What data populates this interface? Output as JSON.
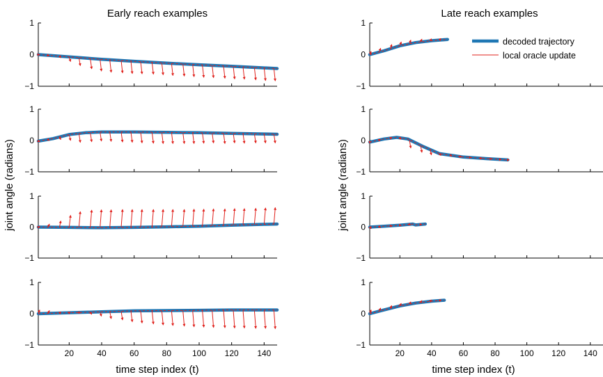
{
  "figure": {
    "legend": {
      "decoded": "decoded trajectory",
      "oracle": "local oracle update"
    },
    "colors": {
      "decoded": "#1f77b4",
      "oracle": "#e0201b",
      "axis": "#000000"
    }
  },
  "chart_data": [
    {
      "type": "line",
      "title": "Early reach examples",
      "ylabel": "joint angle (radians)",
      "xlabel": "time step index (t)",
      "xlim": [
        1,
        148
      ],
      "ylim": [
        -1,
        1
      ],
      "xticks": [
        20,
        40,
        60,
        80,
        100,
        120,
        140
      ],
      "yticks": [
        -1,
        0,
        1
      ],
      "panels": [
        {
          "series": [
            {
              "name": "decoded trajectory",
              "x": [
                1,
                20,
                40,
                60,
                80,
                100,
                120,
                140,
                148
              ],
              "y": [
                0.0,
                -0.07,
                -0.15,
                -0.21,
                -0.27,
                -0.32,
                -0.37,
                -0.42,
                -0.44
              ]
            }
          ],
          "oracle": {
            "x": [
              1,
              7,
              14,
              20,
              26,
              33,
              39,
              45,
              52,
              58,
              64,
              71,
              77,
              83,
              90,
              96,
              102,
              108,
              115,
              121,
              127,
              134,
              140,
              146
            ],
            "y": [
              0.0,
              -0.03,
              -0.1,
              -0.22,
              -0.35,
              -0.45,
              -0.52,
              -0.56,
              -0.58,
              -0.6,
              -0.61,
              -0.62,
              -0.64,
              -0.66,
              -0.68,
              -0.7,
              -0.72,
              -0.73,
              -0.75,
              -0.77,
              -0.78,
              -0.8,
              -0.82,
              -0.83
            ]
          }
        },
        {
          "series": [
            {
              "name": "decoded trajectory",
              "x": [
                1,
                10,
                20,
                30,
                40,
                60,
                80,
                100,
                120,
                140,
                148
              ],
              "y": [
                -0.02,
                0.06,
                0.19,
                0.25,
                0.27,
                0.27,
                0.26,
                0.25,
                0.23,
                0.21,
                0.2
              ]
            }
          ],
          "oracle": {
            "x": [
              1,
              7,
              14,
              20,
              26,
              33,
              39,
              45,
              52,
              58,
              64,
              71,
              77,
              83,
              90,
              96,
              102,
              108,
              115,
              121,
              127,
              134,
              140,
              146
            ],
            "y": [
              -0.04,
              0.0,
              0.03,
              0.0,
              -0.06,
              -0.04,
              -0.02,
              -0.03,
              -0.05,
              -0.06,
              -0.08,
              -0.09,
              -0.1,
              -0.1,
              -0.1,
              -0.1,
              -0.09,
              -0.08,
              -0.1,
              -0.08,
              -0.09,
              -0.08,
              -0.08,
              -0.08
            ]
          }
        },
        {
          "series": [
            {
              "name": "decoded trajectory",
              "x": [
                1,
                20,
                40,
                60,
                80,
                100,
                120,
                140,
                148
              ],
              "y": [
                0.0,
                -0.01,
                -0.02,
                -0.01,
                0.01,
                0.03,
                0.06,
                0.09,
                0.1
              ]
            }
          ],
          "oracle": {
            "x": [
              1,
              7,
              14,
              20,
              26,
              33,
              39,
              45,
              52,
              58,
              64,
              71,
              77,
              83,
              90,
              96,
              102,
              108,
              115,
              121,
              127,
              134,
              140,
              146
            ],
            "y": [
              0.02,
              0.1,
              0.2,
              0.38,
              0.5,
              0.55,
              0.56,
              0.56,
              0.57,
              0.57,
              0.57,
              0.57,
              0.57,
              0.57,
              0.57,
              0.58,
              0.58,
              0.59,
              0.59,
              0.6,
              0.6,
              0.61,
              0.62,
              0.63
            ]
          }
        },
        {
          "series": [
            {
              "name": "decoded trajectory",
              "x": [
                1,
                20,
                40,
                60,
                80,
                100,
                120,
                140,
                148
              ],
              "y": [
                0.0,
                0.03,
                0.06,
                0.09,
                0.1,
                0.11,
                0.12,
                0.12,
                0.12
              ]
            }
          ],
          "oracle": {
            "x": [
              1,
              7,
              14,
              20,
              26,
              33,
              39,
              45,
              52,
              58,
              64,
              71,
              77,
              83,
              90,
              96,
              102,
              108,
              115,
              121,
              127,
              134,
              140,
              146
            ],
            "y": [
              0.12,
              0.1,
              0.06,
              0.05,
              0.02,
              -0.02,
              -0.08,
              -0.16,
              -0.2,
              -0.26,
              -0.3,
              -0.33,
              -0.36,
              -0.38,
              -0.4,
              -0.42,
              -0.43,
              -0.44,
              -0.45,
              -0.46,
              -0.46,
              -0.47,
              -0.47,
              -0.48
            ]
          }
        }
      ]
    },
    {
      "type": "line",
      "title": "Late reach examples",
      "ylabel": "joint angle (radians)",
      "xlabel": "time step index (t)",
      "xlim": [
        1,
        148
      ],
      "ylim": [
        -1,
        1
      ],
      "xticks": [
        20,
        40,
        60,
        80,
        100,
        120,
        140
      ],
      "yticks": [
        -1,
        0,
        1
      ],
      "legend_position": "top-right",
      "panels": [
        {
          "series": [
            {
              "name": "decoded trajectory",
              "x": [
                1,
                10,
                20,
                30,
                40,
                50
              ],
              "y": [
                0.0,
                0.12,
                0.28,
                0.38,
                0.44,
                0.48
              ]
            }
          ],
          "oracle": {
            "x": [
              1,
              7,
              14,
              20,
              26,
              33,
              39,
              45
            ],
            "y": [
              0.1,
              0.2,
              0.32,
              0.4,
              0.46,
              0.49,
              0.5,
              0.51
            ]
          }
        },
        {
          "series": [
            {
              "name": "decoded trajectory",
              "x": [
                1,
                10,
                18,
                25,
                35,
                45,
                60,
                75,
                88
              ],
              "y": [
                -0.05,
                0.05,
                0.1,
                0.05,
                -0.2,
                -0.42,
                -0.53,
                -0.58,
                -0.62
              ]
            }
          ],
          "oracle": {
            "x": [
              1,
              7,
              14,
              20,
              26,
              33,
              39,
              45,
              52,
              58,
              64,
              71,
              77,
              83,
              88
            ],
            "y": [
              -0.04,
              0.04,
              0.1,
              0.04,
              -0.24,
              -0.38,
              -0.46,
              -0.48,
              -0.5,
              -0.52,
              -0.54,
              -0.56,
              -0.58,
              -0.6,
              -0.62
            ]
          }
        },
        {
          "series": [
            {
              "name": "decoded trajectory",
              "x": [
                1,
                10,
                20,
                28,
                30,
                36
              ],
              "y": [
                0.0,
                0.03,
                0.06,
                0.1,
                0.07,
                0.1
              ]
            }
          ],
          "oracle": {
            "x": [
              1,
              7,
              14,
              20,
              26,
              33
            ],
            "y": [
              -0.05,
              -0.02,
              0.02,
              0.05,
              0.07,
              0.08
            ]
          }
        },
        {
          "series": [
            {
              "name": "decoded trajectory",
              "x": [
                1,
                10,
                20,
                30,
                40,
                48
              ],
              "y": [
                0.0,
                0.12,
                0.25,
                0.34,
                0.4,
                0.43
              ]
            }
          ],
          "oracle": {
            "x": [
              1,
              7,
              14,
              20,
              26,
              33,
              39,
              45
            ],
            "y": [
              0.12,
              0.18,
              0.26,
              0.33,
              0.38,
              0.42,
              0.44,
              0.45
            ]
          }
        }
      ]
    }
  ]
}
